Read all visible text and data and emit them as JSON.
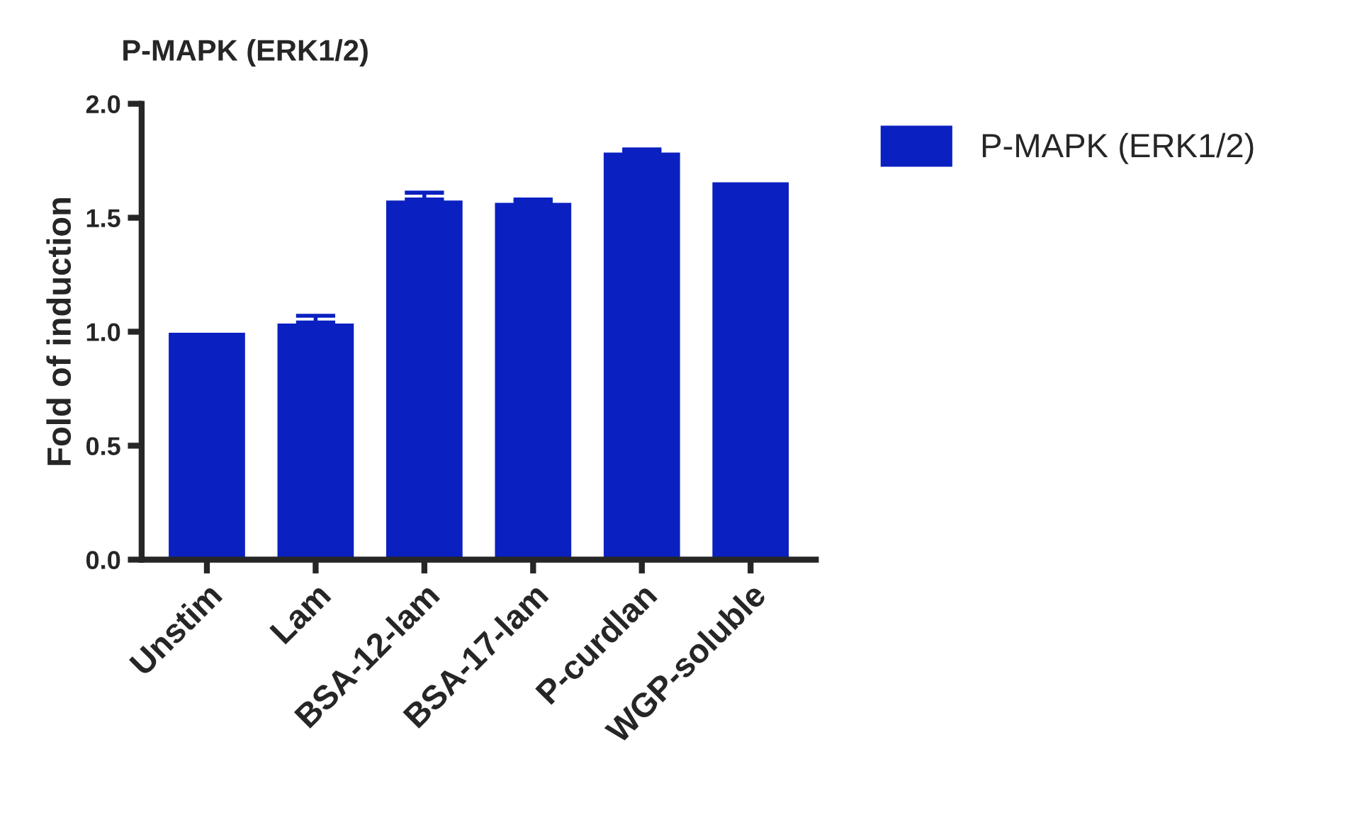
{
  "chart_data": {
    "type": "bar",
    "title": "P-MAPK (ERK1/2)",
    "ylabel": "Fold of induction",
    "categories": [
      "Unstim",
      "Lam",
      "BSA-12-lam",
      "BSA-17-lam",
      "P-curdlan",
      "WGP-soluble"
    ],
    "series": [
      {
        "name": "P-MAPK (ERK1/2)",
        "color": "#0a20c0",
        "values": [
          1.0,
          1.04,
          1.58,
          1.57,
          1.79,
          1.66
        ],
        "errors": [
          null,
          [
            1.04,
            1.07
          ],
          [
            1.58,
            1.61
          ],
          [
            1.57,
            1.58
          ],
          [
            1.79,
            1.8
          ],
          null
        ]
      }
    ],
    "ylim": [
      0,
      2.0
    ],
    "yticks": [
      {
        "value": 0,
        "label": "0.0"
      },
      {
        "value": 0.5,
        "label": "0.5"
      },
      {
        "value": 1.0,
        "label": "1.0"
      },
      {
        "value": 1.5,
        "label": "1.5"
      },
      {
        "value": 2.0,
        "label": "2.0"
      }
    ],
    "grid": false,
    "legend": "top right"
  }
}
